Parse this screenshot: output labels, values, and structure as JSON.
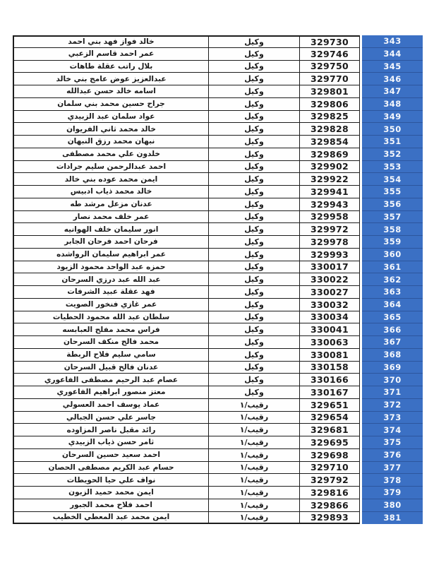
{
  "document": {
    "type": "personnel-roster-table",
    "direction": "rtl",
    "accent_blue": "#3b70c4",
    "serial_separator_blue": "#2d569e",
    "border_black": "#1c1c1c",
    "columns": {
      "name": "name",
      "rank": "rank",
      "service_number": "service_number",
      "serial": "serial"
    },
    "rows": [
      {
        "name": "خالد فواز فهد بني احمد",
        "rank": "وكيل",
        "service_number": "329730",
        "serial": "343"
      },
      {
        "name": "عمر احمد قاسم الزعبي",
        "rank": "وكيل",
        "service_number": "329746",
        "serial": "344"
      },
      {
        "name": "بلال راتب عقلة طاهات",
        "rank": "وكيل",
        "service_number": "329750",
        "serial": "345"
      },
      {
        "name": "عبدالعزيز عوض عامج بني خالد",
        "rank": "وكيل",
        "service_number": "329770",
        "serial": "346"
      },
      {
        "name": "اسامه خالد حسن عبدالله",
        "rank": "وكيل",
        "service_number": "329801",
        "serial": "347"
      },
      {
        "name": "جراح حسين محمد بني سلمان",
        "rank": "وكيل",
        "service_number": "329806",
        "serial": "348"
      },
      {
        "name": "عواد سلمان عبد الزبيدي",
        "rank": "وكيل",
        "service_number": "329825",
        "serial": "349"
      },
      {
        "name": "خالد محمد ثاني الفريوان",
        "rank": "وكيل",
        "service_number": "329828",
        "serial": "350"
      },
      {
        "name": "نبهان محمد رزق النبهان",
        "rank": "وكيل",
        "service_number": "329854",
        "serial": "351"
      },
      {
        "name": "خلدون علي محمد مصطفى",
        "rank": "وكيل",
        "service_number": "329869",
        "serial": "352"
      },
      {
        "name": "احمد عبدالرحمن سليم جرادات",
        "rank": "وكيل",
        "service_number": "329902",
        "serial": "353"
      },
      {
        "name": "ايمن محمد عوده بني خالد",
        "rank": "وكيل",
        "service_number": "329922",
        "serial": "354"
      },
      {
        "name": "خالد محمد ذياب ادبيس",
        "rank": "وكيل",
        "service_number": "329941",
        "serial": "355"
      },
      {
        "name": "عدنان مزعل مرشد طه",
        "rank": "وكيل",
        "service_number": "329943",
        "serial": "356"
      },
      {
        "name": "عمر خلف محمد نصار",
        "rank": "وكيل",
        "service_number": "329958",
        "serial": "357"
      },
      {
        "name": "انور سليمان خلف الهوانيه",
        "rank": "وكيل",
        "service_number": "329972",
        "serial": "358"
      },
      {
        "name": "فرحان احمد فرحان الجابر",
        "rank": "وكيل",
        "service_number": "329978",
        "serial": "359"
      },
      {
        "name": "عمر ابراهيم سليمان الرواشده",
        "rank": "وكيل",
        "service_number": "329993",
        "serial": "360"
      },
      {
        "name": "حمزه عبد الواحد محمود الزيود",
        "rank": "وكيل",
        "service_number": "330017",
        "serial": "361"
      },
      {
        "name": "عبد الله عبد درزي السرحان",
        "rank": "وكيل",
        "service_number": "330022",
        "serial": "362"
      },
      {
        "name": "فهد عقلة عبيد الشرفات",
        "rank": "وكيل",
        "service_number": "330027",
        "serial": "363"
      },
      {
        "name": "عمر غازي فنخور الصويت",
        "rank": "وكيل",
        "service_number": "330032",
        "serial": "364"
      },
      {
        "name": "سلطان عبد الله محمود الحطيات",
        "rank": "وكيل",
        "service_number": "330034",
        "serial": "365"
      },
      {
        "name": "فراس محمد مفلح العبابسه",
        "rank": "وكيل",
        "service_number": "330041",
        "serial": "366"
      },
      {
        "name": "محمد فالح منكف السرحان",
        "rank": "وكيل",
        "service_number": "330063",
        "serial": "367"
      },
      {
        "name": "سامي سليم فلاح الربطة",
        "rank": "وكيل",
        "service_number": "330081",
        "serial": "368"
      },
      {
        "name": "عدنان فالح قبيل السرحان",
        "rank": "وكيل",
        "service_number": "330158",
        "serial": "369"
      },
      {
        "name": "عصام عبد الرحيم مصطفى الفاعوري",
        "rank": "وكيل",
        "service_number": "330166",
        "serial": "370"
      },
      {
        "name": "معتز منصور ابراهيم الفاعوري",
        "rank": "وكيل",
        "service_number": "330167",
        "serial": "371"
      },
      {
        "name": "عماد يوسف احمد العسولي",
        "rank": "رقيب/١",
        "service_number": "329651",
        "serial": "372"
      },
      {
        "name": "جاسر علي حسن الجبالي",
        "rank": "رقيب/١",
        "service_number": "329654",
        "serial": "373"
      },
      {
        "name": "رائد مقبل ناصر المزاوده",
        "rank": "رقيب/١",
        "service_number": "329681",
        "serial": "374"
      },
      {
        "name": "ثامر حسن ذياب الزبيدي",
        "rank": "رقيب/١",
        "service_number": "329695",
        "serial": "375"
      },
      {
        "name": "احمد سعيد حسين السرحان",
        "rank": "رقيب/١",
        "service_number": "329698",
        "serial": "376"
      },
      {
        "name": "حسام عبد الكريم مصطفى الحصان",
        "rank": "رقيب/١",
        "service_number": "329710",
        "serial": "377"
      },
      {
        "name": "نواف علي حيا الحويطات",
        "rank": "رقيب/١",
        "service_number": "329792",
        "serial": "378"
      },
      {
        "name": "ايمن محمد حميد الزبون",
        "rank": "رقيب/١",
        "service_number": "329816",
        "serial": "379"
      },
      {
        "name": "احمد فلاح محمد الجبور",
        "rank": "رقيب/١",
        "service_number": "329866",
        "serial": "380"
      },
      {
        "name": "ايمن محمد عبد المعطي الخطيب",
        "rank": "رقيب/١",
        "service_number": "329893",
        "serial": "381"
      }
    ]
  }
}
